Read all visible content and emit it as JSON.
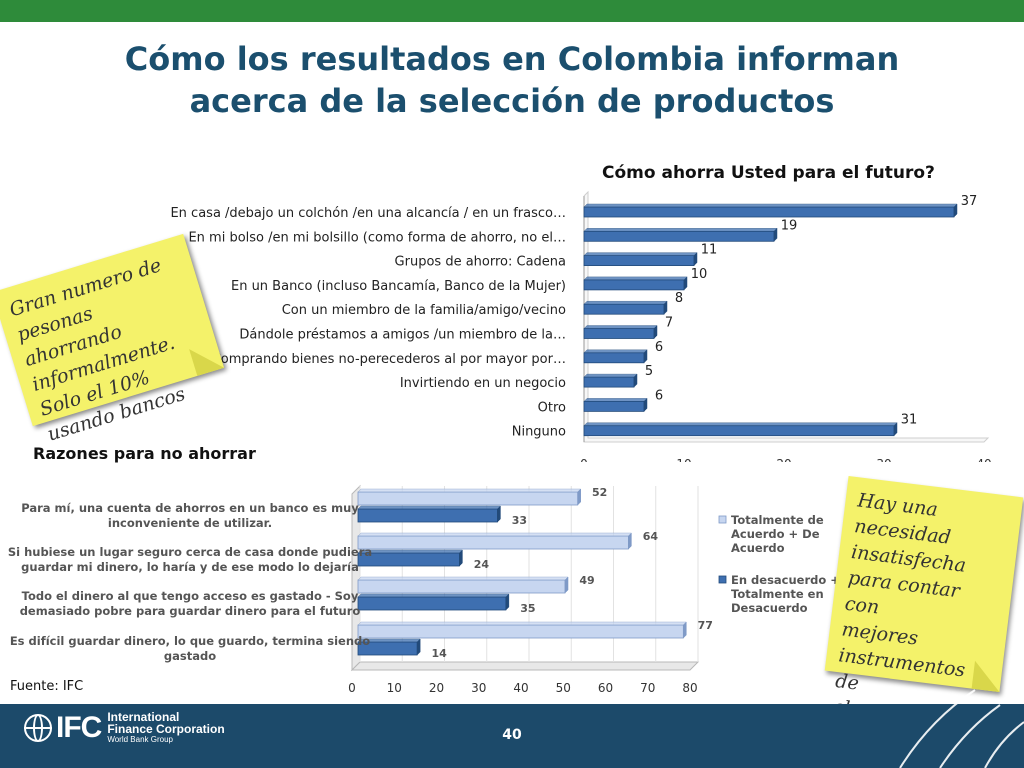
{
  "slide": {
    "title_line1": "Cómo los resultados en Colombia informan",
    "title_line2": "acerca de la selección de productos",
    "source": "Fuente: IFC",
    "page_number": "40"
  },
  "notes": {
    "left": [
      "Gran numero de",
      "pesonas ahorrando",
      "informalmente.",
      "Solo el 10%",
      "usando bancos"
    ],
    "right": [
      "Hay una",
      "necesidad",
      "insatisfecha",
      "para contar con",
      "mejores",
      "instrumentos de",
      "ahorro"
    ]
  },
  "footer": {
    "logo_text": "IFC",
    "org_line1": "International",
    "org_line2": "Finance Corporation",
    "org_line3": "World Bank Group"
  },
  "colors": {
    "top_bar": "#2e8b3a",
    "title": "#1b4f6e",
    "bar_dark": "#3e6fb0",
    "bar_light": "#c7d6f0",
    "note": "#f4f26a",
    "footer": "#1c4a6a"
  },
  "chart_data": [
    {
      "type": "bar",
      "orientation": "horizontal",
      "title": "Cómo  ahorra Usted para el futuro?",
      "categories": [
        "En casa /debajo un colchón /en una alcancía / en un frasco…",
        "En mi bolso /en mi bolsillo (como forma de ahorro, no el…",
        "Grupos de ahorro: Cadena",
        "En un Banco (incluso Bancamía, Banco de la Mujer)",
        "Con un miembro de la familia/amigo/vecino",
        "Dándole préstamos a amigos /un miembro de la…",
        "Comprando bienes no-perecederos al por mayor por…",
        "Invirtiendo en un negocio",
        "Otro",
        "Ninguno"
      ],
      "values": [
        37,
        19,
        11,
        10,
        8,
        7,
        6,
        5,
        6,
        31
      ],
      "xlim": [
        0,
        40
      ],
      "xticks": [
        0,
        10,
        20,
        30,
        40
      ]
    },
    {
      "type": "bar",
      "orientation": "horizontal",
      "title": "Razones para no ahorrar",
      "categories": [
        [
          "Para mí, una cuenta de ahorros en un banco es muy",
          "inconveniente de utilizar."
        ],
        [
          "Si hubiese un lugar seguro cerca de casa donde pudiera",
          "guardar mi dinero, lo haría  y de ese modo lo dejaría"
        ],
        [
          "Todo el dinero al que tengo acceso es gastado - Soy",
          "demasiado pobre para guardar dinero para el futuro"
        ],
        [
          "Es difícil guardar dinero, lo que guardo, termina siendo",
          "gastado"
        ]
      ],
      "series": [
        {
          "name": "Totalmente de Acuerdo + De Acuerdo",
          "legend_lines": [
            "Totalmente de",
            "Acuerdo + De",
            "Acuerdo"
          ],
          "values": [
            52,
            64,
            49,
            77
          ]
        },
        {
          "name": "En desacuerdo + Totalmente en Desacuerdo",
          "legend_lines": [
            "En desacuerdo +",
            "Totalmente en",
            "Desacuerdo"
          ],
          "values": [
            33,
            24,
            35,
            14
          ]
        }
      ],
      "xlim": [
        0,
        80
      ],
      "xticks": [
        0,
        10,
        20,
        30,
        40,
        50,
        60,
        70,
        80
      ],
      "legend": "right"
    }
  ]
}
